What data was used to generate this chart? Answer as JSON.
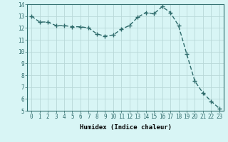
{
  "x": [
    0,
    1,
    2,
    3,
    4,
    5,
    6,
    7,
    8,
    9,
    10,
    11,
    12,
    13,
    14,
    15,
    16,
    17,
    18,
    19,
    20,
    21,
    22,
    23
  ],
  "y": [
    13.0,
    12.5,
    12.5,
    12.2,
    12.2,
    12.1,
    12.1,
    12.0,
    11.5,
    11.3,
    11.4,
    11.9,
    12.2,
    12.9,
    13.3,
    13.2,
    13.8,
    13.3,
    12.2,
    9.8,
    7.5,
    6.5,
    5.8,
    5.2
  ],
  "line_color": "#2e6b6b",
  "marker": "s",
  "marker_size": 2.5,
  "bg_color": "#d8f5f5",
  "grid_color": "#b8d8d8",
  "xlabel": "Humidex (Indice chaleur)",
  "xlim": [
    -0.5,
    23.5
  ],
  "ylim": [
    5,
    14
  ],
  "xticks": [
    0,
    1,
    2,
    3,
    4,
    5,
    6,
    7,
    8,
    9,
    10,
    11,
    12,
    13,
    14,
    15,
    16,
    17,
    18,
    19,
    20,
    21,
    22,
    23
  ],
  "yticks": [
    5,
    6,
    7,
    8,
    9,
    10,
    11,
    12,
    13,
    14
  ],
  "tick_fontsize": 5.5,
  "xlabel_fontsize": 6.5,
  "linewidth": 1.0
}
